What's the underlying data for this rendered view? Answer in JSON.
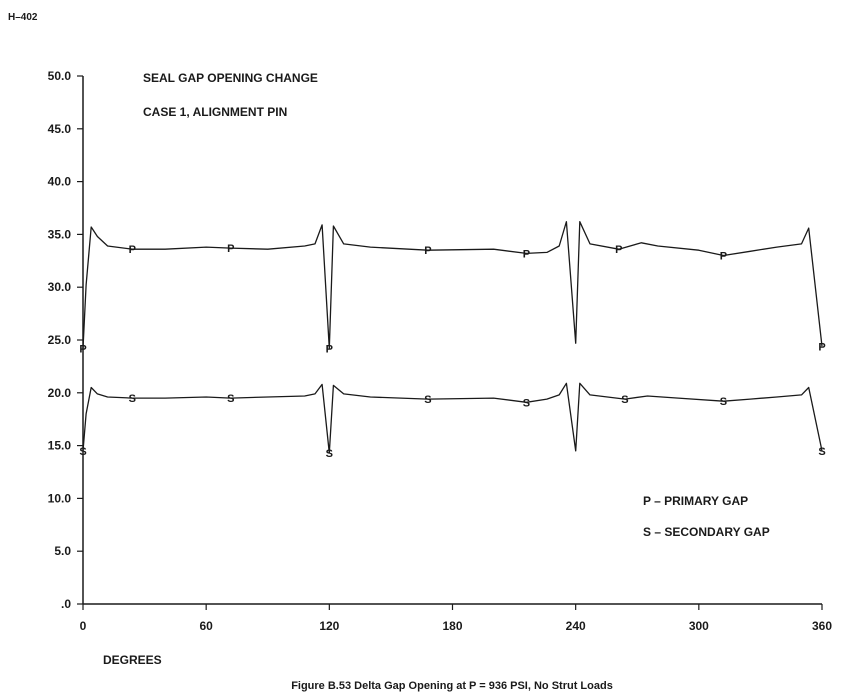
{
  "page_id": "H–402",
  "caption": "Figure B.53 Delta Gap Opening at P  =  936 PSI, No Strut Loads",
  "chart_data": {
    "type": "line",
    "title": "SEAL GAP OPENING CHANGE",
    "subtitle": "CASE 1, ALIGNMENT PIN",
    "xlabel": "DEGREES",
    "ylabel": "",
    "xlim": [
      0,
      360
    ],
    "ylim": [
      0,
      50
    ],
    "x_ticks": [
      0,
      60,
      120,
      180,
      240,
      300,
      360
    ],
    "x_tick_labels": [
      "0",
      "60",
      "120",
      "180",
      "240",
      "300",
      "360"
    ],
    "y_ticks": [
      0,
      5,
      10,
      15,
      20,
      25,
      30,
      35,
      40,
      45,
      50
    ],
    "y_tick_labels": [
      ".0",
      "5.0",
      "10.0",
      "15.0",
      "20.0",
      "25.0",
      "30.0",
      "35.0",
      "40.0",
      "45.0",
      "50.0"
    ],
    "grid": false,
    "legend": {
      "placement": "bottom-right",
      "entries": [
        "P – PRIMARY GAP",
        "S – SECONDARY GAP"
      ]
    },
    "series": [
      {
        "name": "P",
        "marker": "P",
        "marker_x": [
          0,
          24,
          72,
          120,
          168,
          216,
          261,
          312,
          360
        ],
        "x": [
          0,
          1.5,
          4,
          7,
          12,
          24,
          40,
          60,
          72,
          90,
          108,
          113,
          116.5,
          120,
          122,
          127,
          140,
          168,
          200,
          216,
          226,
          232,
          235.5,
          240,
          242,
          247,
          261,
          272,
          280,
          300,
          312,
          325,
          338,
          350,
          353.5,
          360
        ],
        "y": [
          24.2,
          30.2,
          35.7,
          34.8,
          33.9,
          33.6,
          33.6,
          33.8,
          33.7,
          33.6,
          33.9,
          34.1,
          35.9,
          24.2,
          35.8,
          34.1,
          33.8,
          33.5,
          33.6,
          33.2,
          33.3,
          33.9,
          36.2,
          24.7,
          36.2,
          34.1,
          33.6,
          34.2,
          33.9,
          33.5,
          33.0,
          33.4,
          33.8,
          34.1,
          35.6,
          24.4
        ]
      },
      {
        "name": "S",
        "marker": "S",
        "marker_x": [
          0,
          24,
          72,
          120,
          168,
          216,
          264,
          312,
          360
        ],
        "x": [
          0,
          1.5,
          4,
          7,
          12,
          24,
          40,
          60,
          72,
          90,
          108,
          113,
          116.5,
          120,
          122,
          127,
          140,
          168,
          200,
          216,
          226,
          232,
          235.5,
          240,
          242,
          247,
          264,
          275,
          290,
          312,
          325,
          338,
          350,
          353.5,
          360
        ],
        "y": [
          14.5,
          18.0,
          20.5,
          19.9,
          19.6,
          19.5,
          19.5,
          19.6,
          19.5,
          19.6,
          19.7,
          19.9,
          20.8,
          14.3,
          20.7,
          19.9,
          19.6,
          19.4,
          19.5,
          19.1,
          19.4,
          19.8,
          20.9,
          14.5,
          20.9,
          19.8,
          19.4,
          19.7,
          19.5,
          19.2,
          19.4,
          19.6,
          19.8,
          20.5,
          14.5
        ]
      }
    ]
  }
}
